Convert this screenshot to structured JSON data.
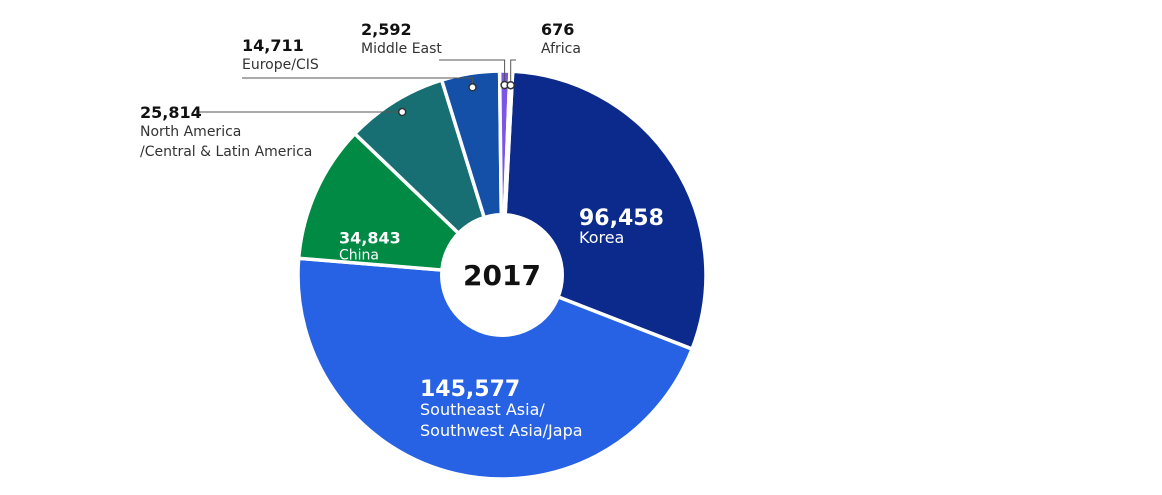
{
  "chart_data": {
    "type": "donut",
    "center_label": "2017",
    "slices": [
      {
        "name": "Korea",
        "value": 96458,
        "value_label": "96,458",
        "color": "#0b2a8c",
        "label_style": "inside"
      },
      {
        "name": "Southeast Asia/\nSouthwest Asia/Japa",
        "value": 145577,
        "value_label": "145,577",
        "color": "#2662e3",
        "label_style": "inside"
      },
      {
        "name": "China",
        "value": 34843,
        "value_label": "34,843",
        "color": "#008a44",
        "label_style": "inside"
      },
      {
        "name": "North America\n/Central & Latin America",
        "value": 25814,
        "value_label": "25,814",
        "color": "#176f73",
        "label_style": "callout"
      },
      {
        "name": "Europe/CIS",
        "value": 14711,
        "value_label": "14,711",
        "color": "#1450a8",
        "label_style": "callout"
      },
      {
        "name": "Middle East",
        "value": 2592,
        "value_label": "2,592",
        "color": "#7b55e6",
        "label_style": "callout"
      },
      {
        "name": "Africa",
        "value": 676,
        "value_label": "676",
        "color": "#3d86c6",
        "label_style": "callout"
      }
    ]
  }
}
